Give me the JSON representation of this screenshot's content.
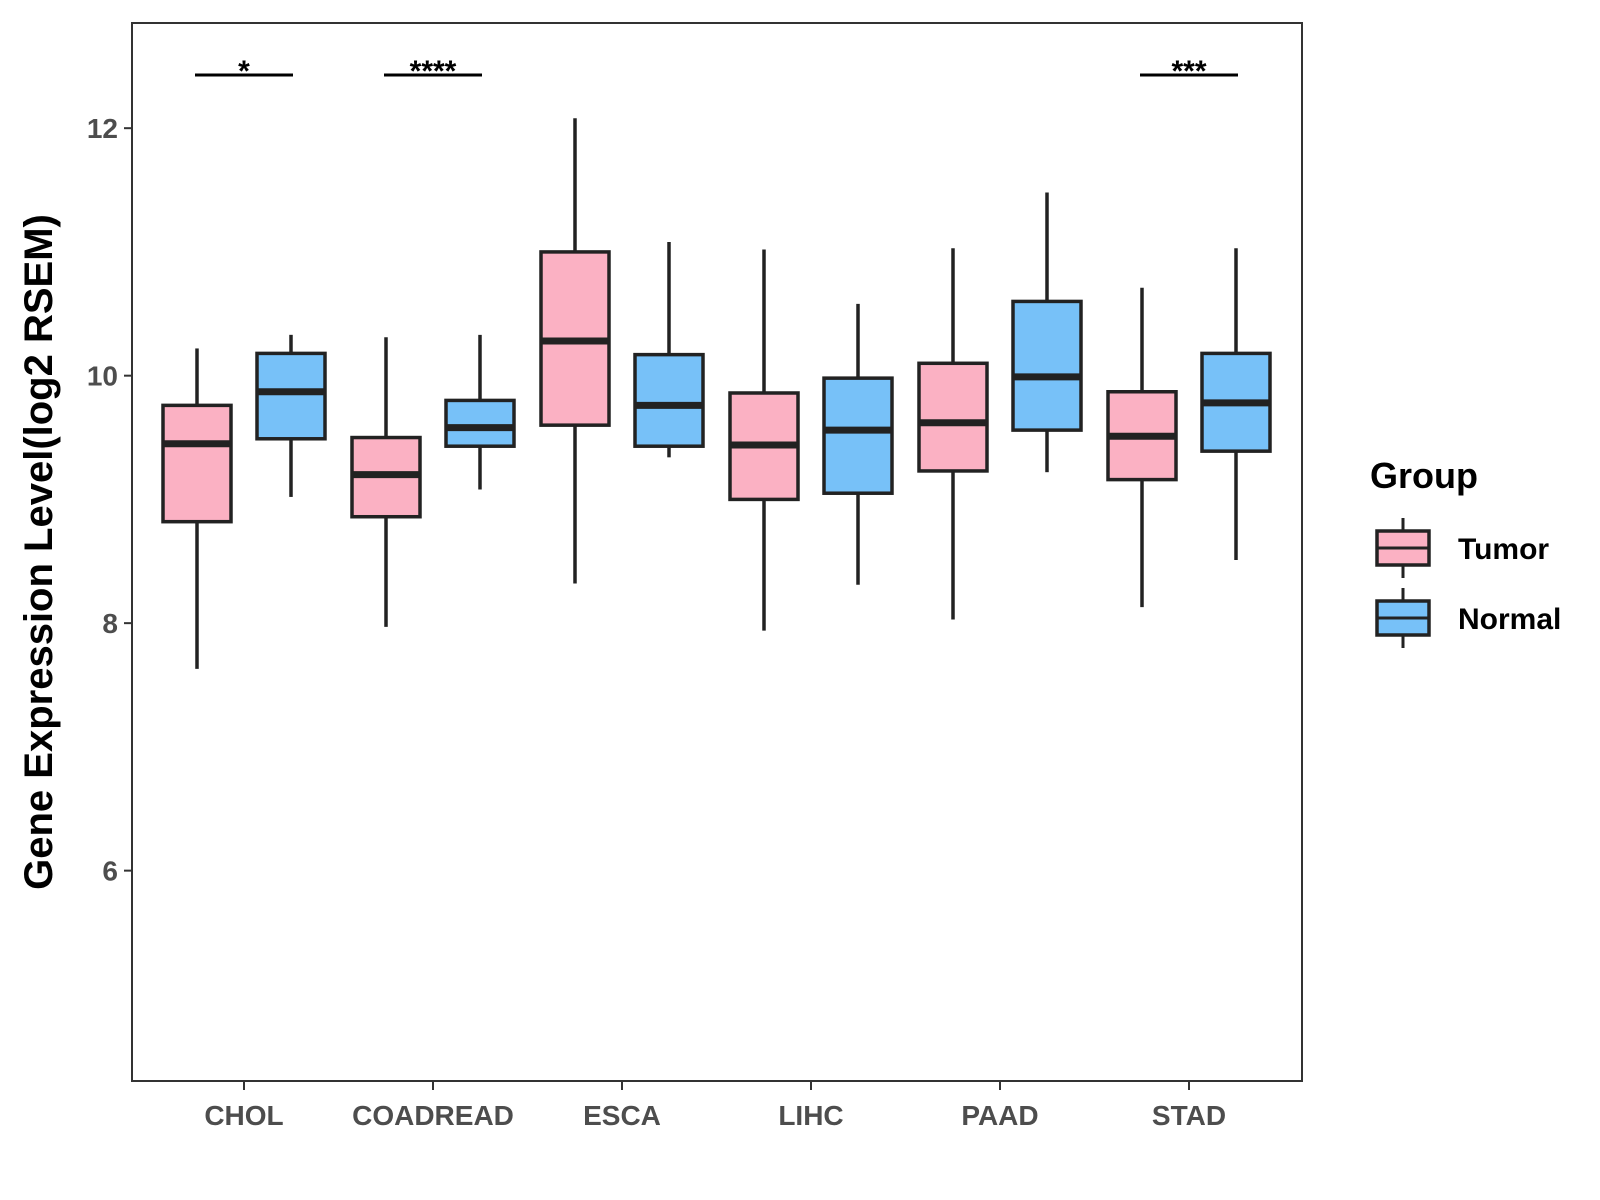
{
  "chart_data": {
    "type": "boxplot",
    "title": "",
    "xlabel": "",
    "ylabel": "Gene Expression Level(log2 RSEM)",
    "ylim": [
      4.3,
      12.85
    ],
    "yticks": [
      6,
      8,
      10,
      12
    ],
    "ytick_labels": [
      "6",
      "8",
      "10",
      "12"
    ],
    "categories": [
      "CHOL",
      "COADREAD",
      "ESCA",
      "LIHC",
      "PAAD",
      "STAD"
    ],
    "legend": {
      "title": "Group",
      "position": "right",
      "entries": [
        {
          "name": "Tumor",
          "color": "#fbb1c3"
        },
        {
          "name": "Normal",
          "color": "#77c1f8"
        }
      ]
    },
    "series": [
      {
        "name": "Tumor",
        "color": "#fbb1c3",
        "boxes": [
          {
            "category": "CHOL",
            "min": 7.63,
            "q1": 8.82,
            "median": 9.45,
            "q3": 9.76,
            "max": 10.22
          },
          {
            "category": "COADREAD",
            "min": 7.97,
            "q1": 8.86,
            "median": 9.2,
            "q3": 9.5,
            "max": 10.31
          },
          {
            "category": "ESCA",
            "min": 8.32,
            "q1": 9.6,
            "median": 10.28,
            "q3": 11.0,
            "max": 12.08
          },
          {
            "category": "LIHC",
            "min": 7.94,
            "q1": 9.0,
            "median": 9.44,
            "q3": 9.86,
            "max": 11.02
          },
          {
            "category": "PAAD",
            "min": 8.03,
            "q1": 9.23,
            "median": 9.62,
            "q3": 10.1,
            "max": 11.03
          },
          {
            "category": "STAD",
            "min": 8.13,
            "q1": 9.16,
            "median": 9.51,
            "q3": 9.87,
            "max": 10.71
          }
        ]
      },
      {
        "name": "Normal",
        "color": "#77c1f8",
        "boxes": [
          {
            "category": "CHOL",
            "min": 9.02,
            "q1": 9.49,
            "median": 9.87,
            "q3": 10.18,
            "max": 10.33
          },
          {
            "category": "COADREAD",
            "min": 9.08,
            "q1": 9.43,
            "median": 9.58,
            "q3": 9.8,
            "max": 10.33
          },
          {
            "category": "ESCA",
            "min": 9.34,
            "q1": 9.43,
            "median": 9.76,
            "q3": 10.17,
            "max": 11.08
          },
          {
            "category": "LIHC",
            "min": 8.31,
            "q1": 9.05,
            "median": 9.56,
            "q3": 9.98,
            "max": 10.58
          },
          {
            "category": "PAAD",
            "min": 9.22,
            "q1": 9.56,
            "median": 9.99,
            "q3": 10.6,
            "max": 11.48
          },
          {
            "category": "STAD",
            "min": 8.51,
            "q1": 9.39,
            "median": 9.78,
            "q3": 10.18,
            "max": 11.03
          }
        ]
      }
    ],
    "significance": [
      {
        "category": "CHOL",
        "label": "*",
        "y": 12.43
      },
      {
        "category": "COADREAD",
        "label": "****",
        "y": 12.43
      },
      {
        "category": "STAD",
        "label": "***",
        "y": 12.43
      }
    ]
  }
}
